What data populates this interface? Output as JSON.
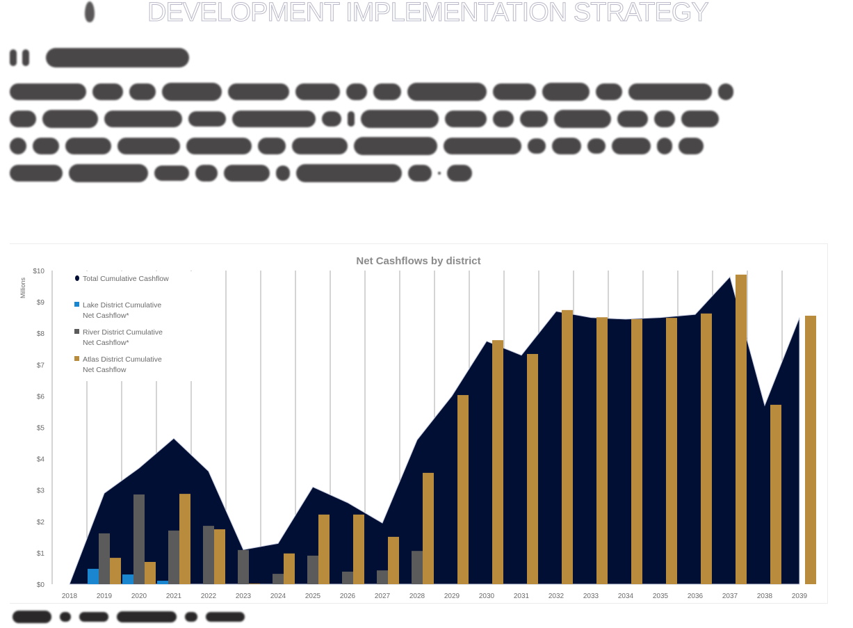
{
  "document": {
    "section_number": "4",
    "section_title": "DEVELOPMENT IMPLEMENTATION STRATEGY",
    "subsection_number": "4.1",
    "subsection_title": "Financial Plan",
    "paragraph": "To ensure that the funding sources cover all the projected costs during the duration of the project cashflows were developed on a quarterly basis for the project and for each of the urban renewal districts. The overall project cashflows as well as each of the district cashflows can be found in Appendices 6.0 - 6.3",
    "figure_caption": "Figure 4: Net Cashflows by District"
  },
  "colors": {
    "total": "#000f33",
    "lake": "#1a86d0",
    "river": "#5b5b5b",
    "atlas": "#b98b3d",
    "grid": "#a8a8a8",
    "axis_text": "#6a6a6a",
    "title_text": "#8a8a8a"
  },
  "chart_data": {
    "type": "bar",
    "title": "Net Cashflows by district",
    "xlabel": "",
    "ylabel": "Millions",
    "ylim": [
      0,
      10
    ],
    "y_ticks": [
      "$0",
      "$1",
      "$2",
      "$3",
      "$4",
      "$5",
      "$6",
      "$7",
      "$8",
      "$9",
      "$10"
    ],
    "grid": "vertical",
    "legend_position": "top-left",
    "categories": [
      "2018",
      "2019",
      "2020",
      "2021",
      "2022",
      "2023",
      "2024",
      "2025",
      "2026",
      "2027",
      "2028",
      "2029",
      "2030",
      "2031",
      "2032",
      "2033",
      "2034",
      "2035",
      "2036",
      "2037",
      "2038",
      "2039"
    ],
    "series": [
      {
        "name": "Total Cumulative Cashflow",
        "type": "area",
        "color_key": "total",
        "values": [
          0,
          2.9,
          3.7,
          4.65,
          3.6,
          1.1,
          1.3,
          3.1,
          2.6,
          1.95,
          4.6,
          6.0,
          7.75,
          7.3,
          8.7,
          8.5,
          8.45,
          8.5,
          8.6,
          9.8,
          5.7,
          8.5
        ]
      },
      {
        "name": "Lake District Cumulative Net Cashflow*",
        "type": "bar",
        "color_key": "lake",
        "values": [
          0,
          0.49,
          0.31,
          0.11,
          0,
          0,
          0,
          0,
          0,
          0,
          0,
          0,
          0,
          0,
          0,
          0,
          0,
          0,
          0,
          0,
          0,
          0
        ]
      },
      {
        "name": "River District  Cumulative Net Cashflow*",
        "type": "bar",
        "color_key": "river",
        "values": [
          0,
          1.62,
          2.86,
          1.71,
          1.86,
          1.09,
          0.33,
          0.91,
          0.4,
          0.44,
          1.06,
          0,
          0,
          0,
          0,
          0,
          0,
          0,
          0,
          0,
          0,
          0
        ]
      },
      {
        "name": "Atlas District  Cumulative Net Cashflow",
        "type": "bar",
        "color_key": "atlas",
        "values": [
          0,
          0.84,
          0.71,
          2.88,
          1.75,
          0.02,
          0.98,
          2.22,
          2.22,
          1.51,
          3.55,
          6.03,
          7.78,
          7.34,
          8.74,
          8.51,
          8.45,
          8.49,
          8.63,
          9.87,
          5.72,
          8.56
        ]
      }
    ],
    "legend": [
      {
        "label_lines": [
          "Total Cumulative Cashflow"
        ],
        "color_key": "total",
        "marker": "circle"
      },
      {
        "label_lines": [
          "Lake District Cumulative",
          "Net Cashflow*"
        ],
        "color_key": "lake",
        "marker": "square"
      },
      {
        "label_lines": [
          "River District  Cumulative",
          "Net Cashflow*"
        ],
        "color_key": "river",
        "marker": "square"
      },
      {
        "label_lines": [
          "Atlas District  Cumulative",
          "Net Cashflow"
        ],
        "color_key": "atlas",
        "marker": "square"
      }
    ]
  }
}
